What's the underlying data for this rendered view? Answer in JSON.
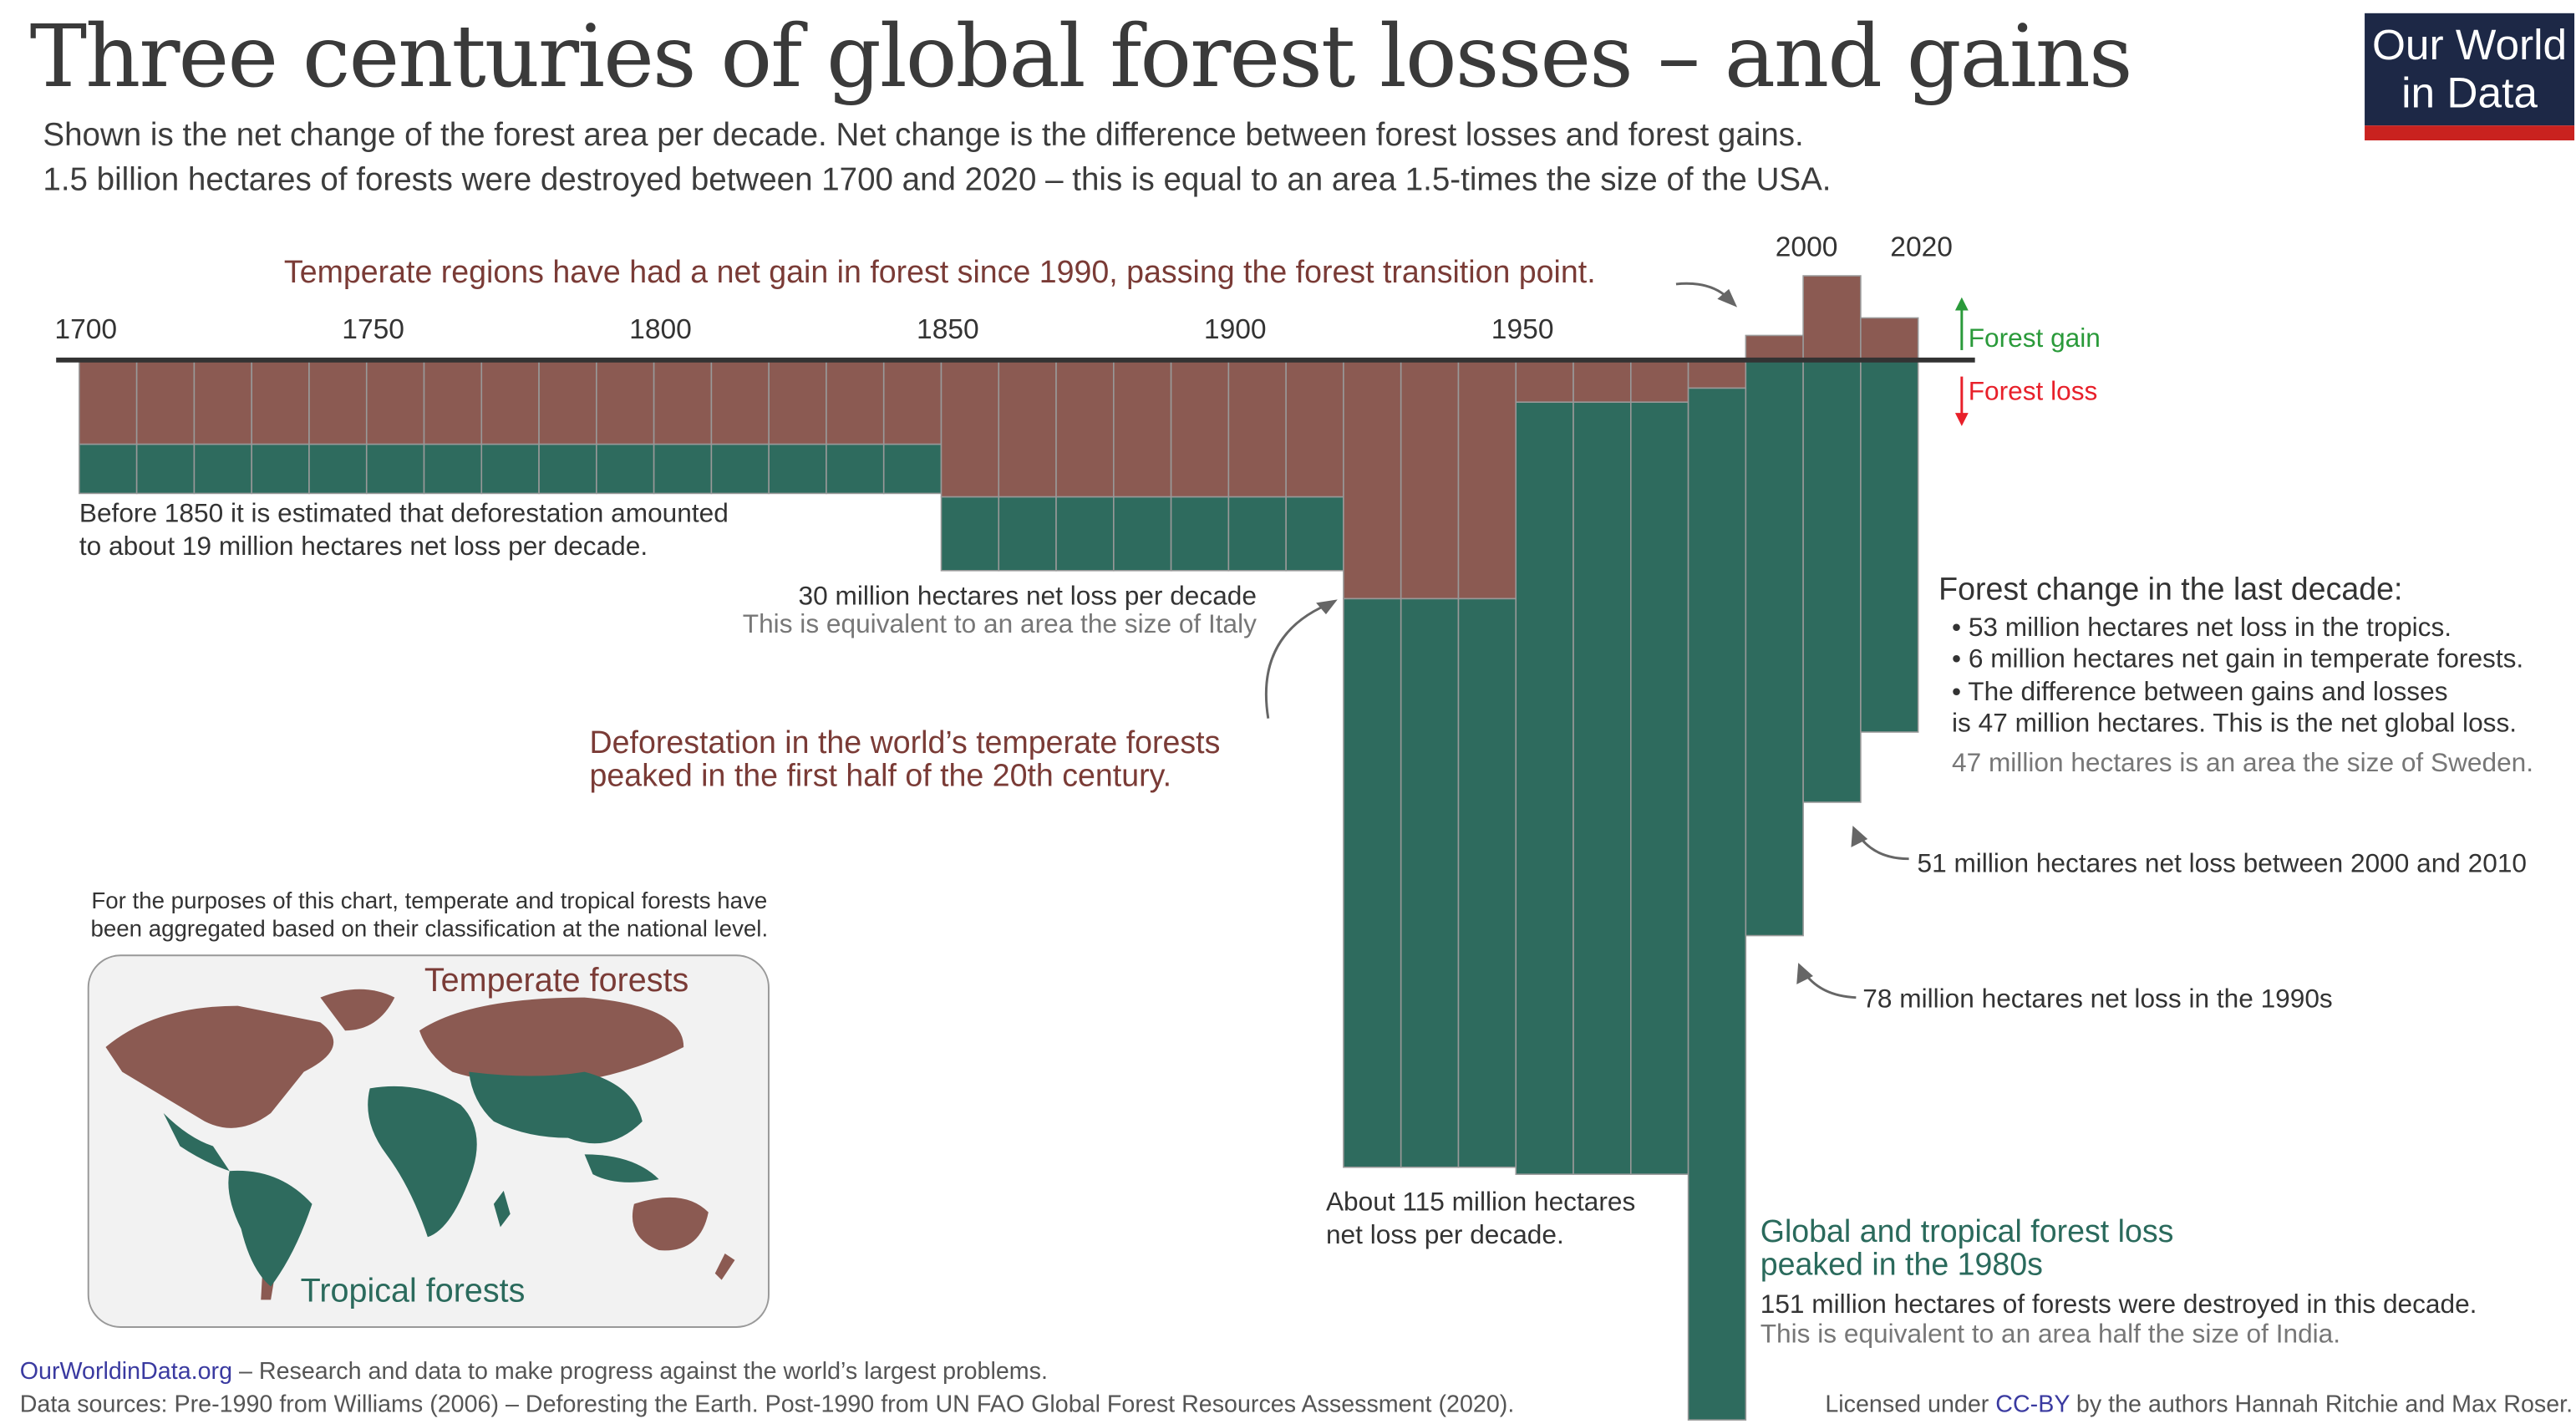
{
  "title": "Three centuries of global forest losses – and gains",
  "subtitle": [
    "Shown is the net change of the forest area per decade. Net change is the difference between forest losses and forest gains.",
    "1.5 billion hectares of forests were destroyed between 1700 and 2020 – this is equal to an area 1.5-times the size of the USA."
  ],
  "logo": {
    "line1": "Our World",
    "line2": "in Data"
  },
  "colors": {
    "temperate": "#8b5a52",
    "tropical": "#2e6b5e",
    "gain": "#2a9a3a",
    "loss": "#e8202a",
    "logo_navy": "#1d2846",
    "logo_red": "#c9221f"
  },
  "chart_data": {
    "type": "bar",
    "stacked": true,
    "unit": "million hectares net change per decade",
    "xlim": [
      1700,
      2020
    ],
    "tick_labels_lower": [
      "1700",
      "1750",
      "1800",
      "1850",
      "1900",
      "1950"
    ],
    "tick_labels_upper": [
      "2000",
      "2020"
    ],
    "series": [
      {
        "name": "Temperate forests",
        "color": "#8b5a52"
      },
      {
        "name": "Tropical forests",
        "color": "#2e6b5e"
      }
    ],
    "periods": [
      {
        "from": 1700,
        "to": 1850,
        "temperate": -12,
        "tropical": -7
      },
      {
        "from": 1850,
        "to": 1920,
        "temperate": -19.5,
        "tropical": -10.5
      },
      {
        "from": 1920,
        "to": 1950,
        "temperate": -34,
        "tropical": -81
      },
      {
        "from": 1950,
        "to": 1980,
        "temperate": -6,
        "tropical": -110
      },
      {
        "from": 1980,
        "to": 1990,
        "temperate": -4,
        "tropical": -147
      },
      {
        "from": 1990,
        "to": 2000,
        "temperate": 3.5,
        "tropical": -82
      },
      {
        "from": 2000,
        "to": 2010,
        "temperate": 12,
        "tropical": -63
      },
      {
        "from": 2010,
        "to": 2020,
        "temperate": 6,
        "tropical": -53
      }
    ],
    "legend": {
      "gain": "Forest gain",
      "loss": "Forest loss"
    }
  },
  "annotations": {
    "temperate_transition": "Temperate regions have had a net gain in forest since 1990, passing the forest transition point.",
    "before_1850": [
      "Before 1850 it is estimated that deforestation amounted",
      "to about 19 million hectares net loss per decade."
    ],
    "loss_30": "30 million hectares net loss per decade",
    "italy": "This is equivalent to an area the size of Italy",
    "temperate_peak": [
      "Deforestation in the world’s temperate forests",
      "peaked in the first half of the 20th century."
    ],
    "about_115": [
      "About 115 million hectares",
      "net loss per decade."
    ],
    "last_decade_title": "Forest change in the last decade:",
    "last_decade_bullets": [
      "• 53 million hectares net loss in the tropics.",
      "• 6 million hectares net gain in temperate forests.",
      "• The difference between gains and losses",
      "is 47 million hectares. This is the net global loss."
    ],
    "sweden": "47 million hectares is an area the size of Sweden.",
    "loss_2000s": "51 million hectares net loss between 2000 and 2010",
    "loss_1990s": "78 million hectares net loss in the 1990s",
    "tropical_peak": [
      "Global and tropical forest loss",
      "peaked in the 1980s"
    ],
    "loss_151": "151 million hectares of forests were destroyed in this decade.",
    "india": "This is equivalent to an area half the size of India."
  },
  "map": {
    "note": [
      "For the purposes of this chart, temperate and tropical forests have",
      "been aggregated based on their classification at the national level."
    ],
    "temperate_label": "Temperate forests",
    "tropical_label": "Tropical forests"
  },
  "footer": {
    "site": "OurWorldinData.org",
    "tagline": " – Research and data to make progress against the world’s largest problems.",
    "sources": "Data sources: Pre-1990 from Williams (2006) – Deforesting the Earth. Post-1990 from UN FAO Global Forest Resources Assessment (2020).",
    "license_prefix": "Licensed under ",
    "license": "CC-BY",
    "license_suffix": " by the authors Hannah Ritchie and Max Roser."
  }
}
